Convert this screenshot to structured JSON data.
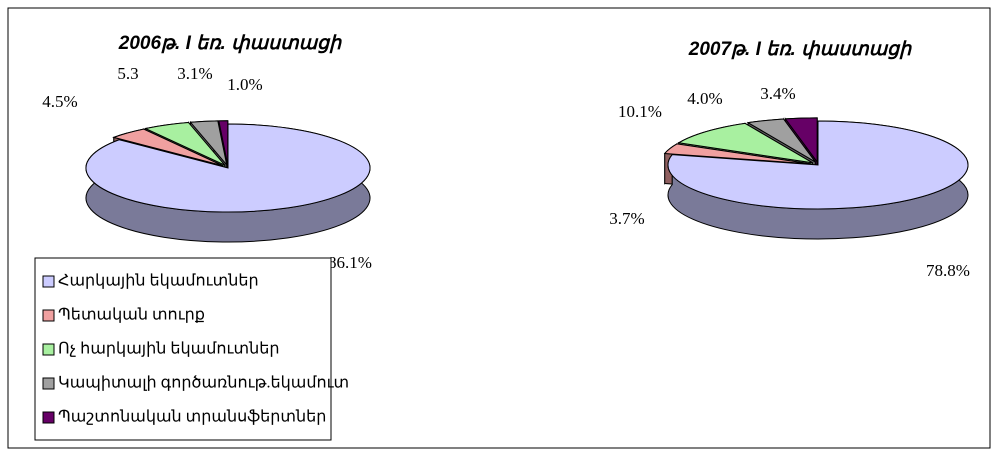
{
  "chart_data": [
    {
      "type": "pie3d",
      "title": "2006թ. I եռ. փաստացի",
      "categories": [
        "Հարկային եկամուտներ",
        "Պետական տուրք",
        "Ոչ հարկային եկամուտներ",
        "Կապիտալի գործառնութ.եկամուտ",
        "Պաշտոնական տրանսֆերտներ"
      ],
      "values": [
        86.1,
        4.5,
        5.3,
        3.1,
        1.0
      ],
      "value_labels": [
        "86.1%",
        "4.5%",
        "5.3",
        "3.1%",
        "1.0%"
      ],
      "colors": [
        "#ccccff",
        "#f0a0a0",
        "#a8f0a0",
        "#a0a0a0",
        "#660066"
      ],
      "legend": true
    },
    {
      "type": "pie3d",
      "title": "2007թ. I եռ. փաստացի",
      "categories": [
        "Հարկային եկամուտներ",
        "Պետական տուրք",
        "Ոչ հարկային եկամուտներ",
        "Կապիտալի գործառնութ.եկամուտ",
        "Պաշտոնական տրանսֆերտներ"
      ],
      "values": [
        78.8,
        3.7,
        10.1,
        4.0,
        3.4
      ],
      "value_labels": [
        "78.8%",
        "3.7%",
        "10.1%",
        "4.0%",
        "3.4%"
      ],
      "colors": [
        "#ccccff",
        "#f0a0a0",
        "#a8f0a0",
        "#a0a0a0",
        "#660066"
      ],
      "legend": false
    }
  ]
}
